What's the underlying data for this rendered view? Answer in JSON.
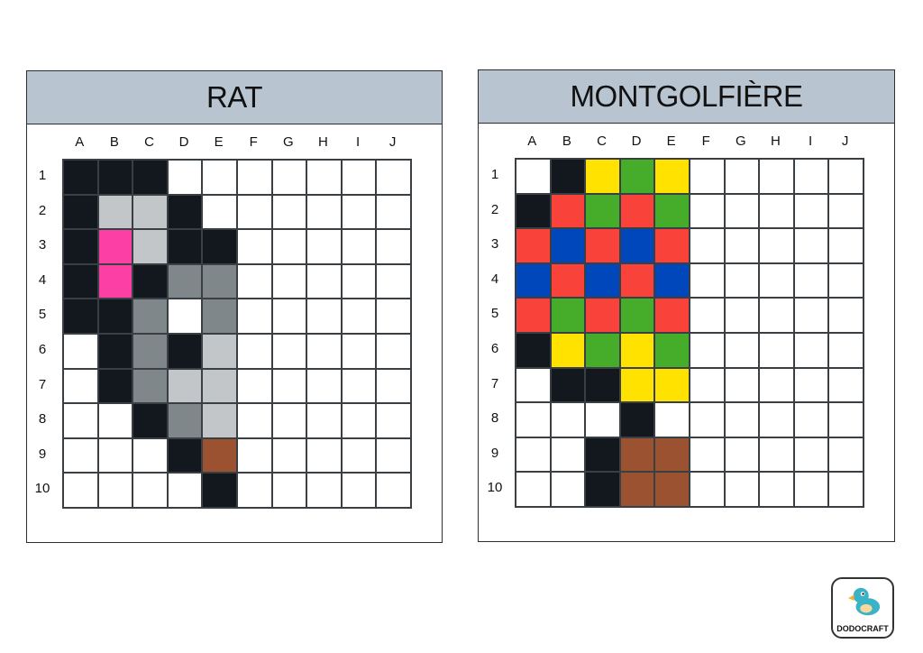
{
  "palette": {
    "W": "#ffffff",
    "K": "#12181d",
    "L": "#c3c6c8",
    "G": "#7f878b",
    "P": "#fb3fa5",
    "N": "#9b5230",
    "R": "#f9423a",
    "V": "#45ad2a",
    "B": "#0047bb",
    "Y": "#ffe200"
  },
  "header_color": "#b8c4cf",
  "columns": [
    "A",
    "B",
    "C",
    "D",
    "E",
    "F",
    "G",
    "H",
    "I",
    "J"
  ],
  "rows": [
    "1",
    "2",
    "3",
    "4",
    "5",
    "6",
    "7",
    "8",
    "9",
    "10"
  ],
  "puzzles": [
    {
      "title": "RAT",
      "grid": [
        "KKKWWWWWWW",
        "KLLKWWWWWW",
        "KPLKKWWWWW",
        "KPKGGWWWWW",
        "KKGWGWWWWW",
        "WKGKLWWWWW",
        "WKGLLWWWWW",
        "WWKGLWWWWW",
        "WWWKNWWWWW",
        "WWWWKWWWWW"
      ]
    },
    {
      "title": "MONTGOLFIÈRE",
      "grid": [
        "WKYVYWWWWW",
        "KRVRVWWWWW",
        "RBRBRWWWWW",
        "BRBRBWWWWW",
        "RVRVRWWWWW",
        "KYVYVWWWWW",
        "WKKYYWWWWW",
        "WWWKWWWWWW",
        "WWKNNWWWWW",
        "WWKNNWWWWW"
      ]
    }
  ],
  "logo": {
    "text": "DODOCRAFT",
    "icon": "dodo-bird-icon"
  }
}
